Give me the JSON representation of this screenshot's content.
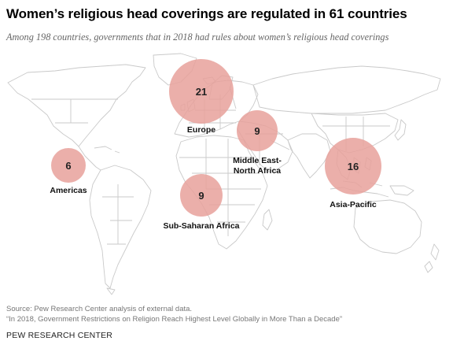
{
  "title": "Women’s religious head coverings are regulated in 61 countries",
  "subtitle": "Among 198 countries, governments that in 2018 had rules about women’s religious head coverings",
  "map": {
    "bubble_color": "#e8a19b",
    "land_outline_color": "#c9c9c9",
    "regions": [
      {
        "name": "Europe",
        "value": "21"
      },
      {
        "name": "Middle East-North Africa",
        "name_lines": [
          "Middle East-",
          "North Africa"
        ],
        "value": "9"
      },
      {
        "name": "Americas",
        "value": "6"
      },
      {
        "name": "Sub-Saharan Africa",
        "value": "9"
      },
      {
        "name": "Asia-Pacific",
        "value": "16"
      }
    ]
  },
  "source": {
    "line1": "Source: Pew Research Center analysis of external data.",
    "line2": "“In 2018, Government Restrictions on Religion Reach Highest Level Globally in More Than a Decade”"
  },
  "credit": "PEW RESEARCH CENTER"
}
